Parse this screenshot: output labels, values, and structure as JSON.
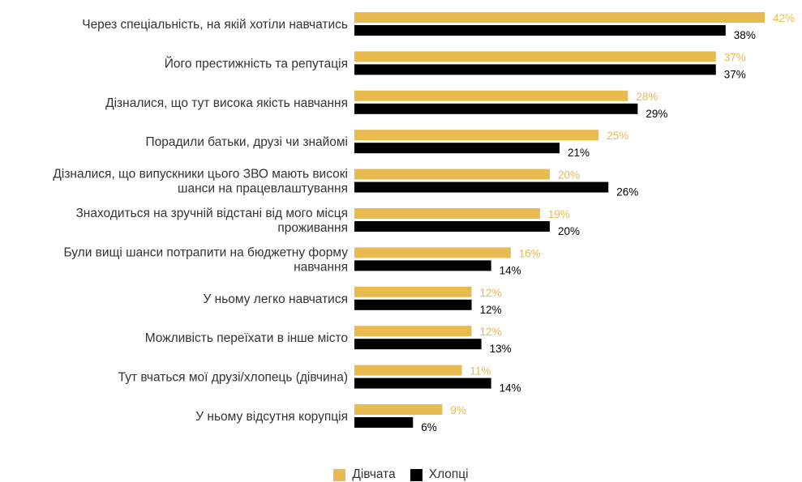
{
  "chart_data": {
    "type": "bar",
    "orientation": "horizontal",
    "categories": [
      [
        "Через спеціальність, на якій хотіли навчатись"
      ],
      [
        "Його престижність та репутація"
      ],
      [
        "Дізналися, що тут висока якість навчання"
      ],
      [
        "Порадили батьки, друзі чи знайомі"
      ],
      [
        "Дізналися, що випускники цього ЗВО мають високі",
        "шанси на працевлаштування"
      ],
      [
        "Знаходиться на зручній відстані від мого місця",
        "проживання"
      ],
      [
        "Були вищі шанси потрапити на бюджетну форму",
        "навчання"
      ],
      [
        "У ньому легко навчатися"
      ],
      [
        "Можливість переїхати в інше місто"
      ],
      [
        "Тут вчаться мої друзі/хлопець (дівчина)"
      ],
      [
        "У ньому відсутня корупція"
      ]
    ],
    "series": [
      {
        "name": "Дівчата",
        "color": "#E9BA4F",
        "label_color": "#E9BA4F",
        "values": [
          42,
          37,
          28,
          25,
          20,
          19,
          16,
          12,
          12,
          11,
          9
        ]
      },
      {
        "name": "Хлопці",
        "color": "#000000",
        "label_color": "#000000",
        "values": [
          38,
          37,
          29,
          21,
          26,
          20,
          14,
          12,
          13,
          14,
          6
        ]
      }
    ],
    "value_suffix": "%",
    "xlim": [
      0,
      42
    ],
    "grid": false,
    "legend_position": "bottom-center"
  }
}
